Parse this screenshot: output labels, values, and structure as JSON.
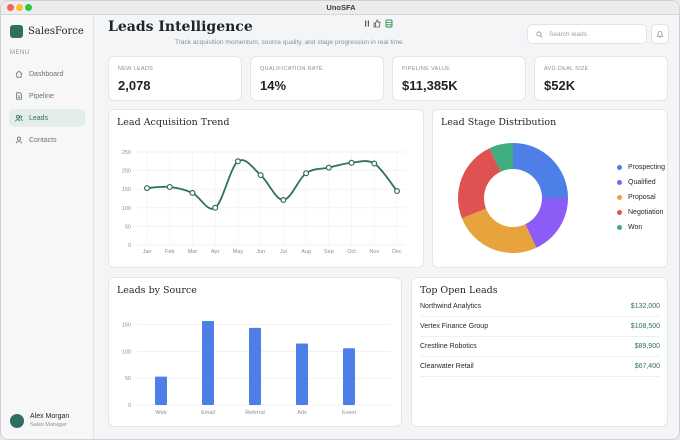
{
  "window": {
    "title": "UnoSFA"
  },
  "sidebar": {
    "brand": "SalesForce",
    "menu_label": "MENU",
    "items": [
      {
        "label": "Dashboard",
        "icon": "home-icon"
      },
      {
        "label": "Pipeline",
        "icon": "document-icon"
      },
      {
        "label": "Leads",
        "icon": "users-icon",
        "active": true
      },
      {
        "label": "Contacts",
        "icon": "user-icon"
      }
    ],
    "user": {
      "name": "Alex Morgan",
      "role": "Sales Manager"
    }
  },
  "header": {
    "title": "Leads Intelligence",
    "subtitle": "Track acquisition momentum, source quality, and stage progression in real time",
    "search_placeholder": "Search leads"
  },
  "kpis": [
    {
      "label": "NEW LEADS",
      "value": "2,078"
    },
    {
      "label": "QUALIFICATION RATE",
      "value": "14%"
    },
    {
      "label": "PIPELINE VALUE",
      "value": "$11,385K"
    },
    {
      "label": "AVG DEAL SIZE",
      "value": "$52K"
    }
  ],
  "colors": {
    "accent": "#2f6f62",
    "bar": "#4e7fe6"
  },
  "chart_data": [
    {
      "type": "line",
      "title": "Lead Acquisition Trend",
      "x": [
        "Jan",
        "Feb",
        "Mar",
        "Apr",
        "May",
        "Jun",
        "Jul",
        "Aug",
        "Sep",
        "Oct",
        "Nov",
        "Dec"
      ],
      "series": [
        {
          "values": [
            153,
            156,
            140,
            100,
            225,
            188,
            121,
            193,
            208,
            221,
            219,
            145
          ]
        }
      ],
      "yticks": [
        "0",
        "50",
        "100",
        "150",
        "200",
        "250"
      ],
      "ylim": [
        0,
        250
      ],
      "grid": true,
      "color": "#2f6f62"
    },
    {
      "type": "pie",
      "title": "Lead Stage Distribution",
      "donut": true,
      "slices": [
        {
          "label": "Prospecting",
          "value": 25,
          "color": "#4e7fe6"
        },
        {
          "label": "Qualified",
          "value": 18,
          "color": "#8b5cf6"
        },
        {
          "label": "Proposal",
          "value": 26,
          "color": "#e8a33d"
        },
        {
          "label": "Negotiation",
          "value": 24,
          "color": "#e05252"
        },
        {
          "label": "Won",
          "value": 7,
          "color": "#3fae7e"
        }
      ],
      "legend_position": "right"
    },
    {
      "type": "bar",
      "title": "Leads by Source",
      "categories": [
        "Web",
        "Email",
        "Referral",
        "Ads",
        "Event"
      ],
      "values": [
        53,
        157,
        144,
        115,
        106
      ],
      "yticks": [
        "0",
        "50",
        "100",
        "150"
      ],
      "ylim": [
        0,
        170
      ],
      "grid": true,
      "color": "#4e7fe6"
    }
  ],
  "top_leads": {
    "title": "Top Open Leads",
    "rows": [
      {
        "name": "Northwind Analytics",
        "value": "$132,000"
      },
      {
        "name": "Vertex Finance Group",
        "value": "$108,500"
      },
      {
        "name": "Crestline Robotics",
        "value": "$89,900"
      },
      {
        "name": "Clearwater Retail",
        "value": "$67,400"
      }
    ]
  }
}
